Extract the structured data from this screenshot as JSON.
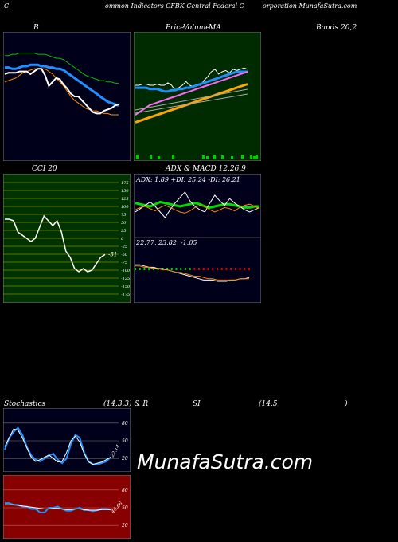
{
  "header": {
    "c1": "C",
    "c2": "ommon  Indicators CFBK Central Federal C",
    "c3": "orporation  MunafaSutra.com"
  },
  "row1": {
    "b": "B",
    "price": "Price,",
    "volume": "Volume",
    "ma": "MA",
    "bands": "Bands 20,2"
  },
  "row2": {
    "cci": "CCI 20",
    "adx_title": "ADX  & MACD 12,26,9"
  },
  "row3": {
    "stoch": "Stochastics",
    "params": "(14,3,3) & R",
    "si": "SI",
    "rsi_param": "(14,5",
    "close": ")"
  },
  "watermark": "MunafaSutra.com",
  "colors": {
    "green_panel": "#002b00",
    "cci_panel": "#003300",
    "red_panel": "#880000",
    "navy": "#00001a"
  },
  "chart_data": [
    {
      "type": "line",
      "name": "bollinger",
      "series": [
        {
          "name": "upper",
          "color": "#00c000",
          "values": [
            72,
            72,
            71,
            71,
            70,
            70,
            70,
            70,
            70,
            71,
            71,
            71,
            72,
            73,
            74,
            74,
            75,
            77,
            79,
            81,
            83,
            85,
            87,
            88,
            89,
            90,
            91,
            91,
            92,
            92,
            93,
            93
          ]
        },
        {
          "name": "middle",
          "color": "#1e90ff",
          "values": [
            81,
            81,
            82,
            82,
            81,
            80,
            80,
            79,
            79,
            79,
            80,
            80,
            81,
            81,
            82,
            82,
            83,
            85,
            87,
            89,
            91,
            93,
            95,
            97,
            99,
            101,
            103,
            105,
            107,
            108,
            109,
            110
          ]
        },
        {
          "name": "lower",
          "color": "#ff8c00",
          "values": [
            92,
            91,
            90,
            89,
            87,
            85,
            84,
            83,
            82,
            82,
            82,
            82,
            84,
            86,
            89,
            92,
            95,
            99,
            103,
            106,
            108,
            110,
            112,
            113,
            114,
            114,
            115,
            116,
            116,
            117,
            117,
            117
          ]
        },
        {
          "name": "price",
          "color": "#ffffff",
          "values": [
            86,
            85,
            85,
            85,
            84,
            84,
            84,
            86,
            84,
            82,
            82,
            87,
            95,
            92,
            89,
            90,
            94,
            97,
            101,
            103,
            103,
            106,
            109,
            112,
            115,
            116,
            116,
            114,
            113,
            112,
            110,
            109
          ]
        }
      ]
    },
    {
      "type": "line",
      "name": "price_ma",
      "series": [
        {
          "name": "price",
          "color": "#ffffff",
          "values": [
            60,
            60,
            61,
            61,
            60,
            60,
            61,
            60,
            60,
            62,
            60,
            56,
            58,
            60,
            63,
            60,
            59,
            61,
            60,
            64,
            67,
            71,
            73,
            69,
            71,
            72,
            70,
            73,
            72,
            73,
            74,
            73
          ]
        },
        {
          "name": "ma_short",
          "color": "#1e90ff",
          "values": [
            58,
            58,
            58,
            58,
            57,
            57,
            57,
            56,
            55,
            55,
            56,
            56,
            57,
            57,
            58,
            58,
            59,
            60,
            61,
            62,
            63,
            64,
            65,
            66,
            67,
            68,
            69,
            70,
            71,
            71,
            71,
            71
          ]
        },
        {
          "name": "ma_mid",
          "color": "#ff66ff",
          "values": [
            36,
            38,
            40,
            42,
            44,
            45,
            46,
            47,
            48,
            49,
            50,
            51,
            52,
            53,
            54,
            55,
            56,
            57,
            58,
            59,
            60,
            61,
            62,
            63,
            64,
            65,
            66,
            67,
            68,
            69,
            70,
            71
          ]
        },
        {
          "name": "ma_long",
          "color": "#ffa500",
          "values": [
            30,
            31,
            32,
            33,
            34,
            35,
            36,
            37,
            38,
            39,
            40,
            41,
            42,
            43,
            44,
            45,
            46,
            47,
            48,
            49,
            50,
            51,
            52,
            53,
            54,
            55,
            56,
            57,
            58,
            59,
            60,
            61
          ]
        }
      ]
    },
    {
      "type": "line",
      "name": "cci",
      "ticks": [
        "175",
        "150",
        "125",
        "100",
        "75",
        "50",
        "25",
        "0",
        "-25",
        "-50",
        "-75",
        "-100",
        "-125",
        "-150",
        "-175"
      ],
      "last_label": "-51",
      "values": [
        60,
        60,
        55,
        20,
        10,
        0,
        -10,
        0,
        35,
        70,
        55,
        40,
        55,
        20,
        -40,
        -60,
        -95,
        -105,
        -95,
        -105,
        -100,
        -80,
        -60,
        -51
      ]
    },
    {
      "type": "line",
      "name": "adx",
      "label": "ADX: 1.89  +DI: 25.24  -DI: 26.21",
      "series": [
        {
          "name": "adx_green",
          "color": "#00dd00",
          "values": [
            28,
            27,
            26,
            25,
            27,
            29,
            28,
            27,
            26,
            25,
            26,
            27,
            28,
            27,
            25,
            24,
            25,
            26,
            27,
            27,
            26,
            25,
            24,
            24,
            25,
            25
          ]
        },
        {
          "name": "di_white",
          "color": "#ffffff",
          "values": [
            20,
            23,
            26,
            29,
            25,
            20,
            15,
            22,
            28,
            33,
            38,
            30,
            25,
            22,
            20,
            28,
            35,
            30,
            26,
            32,
            28,
            25,
            22,
            20,
            22,
            24
          ]
        },
        {
          "name": "di_orange",
          "color": "#ff8800",
          "values": [
            22,
            24,
            25,
            23,
            21,
            24,
            26,
            24,
            22,
            20,
            19,
            21,
            24,
            26,
            25,
            22,
            20,
            22,
            24,
            23,
            21,
            24,
            26,
            27,
            25,
            23
          ]
        }
      ]
    },
    {
      "type": "line",
      "name": "macd",
      "label": "22.77,  23.82,  -1.05",
      "series": [
        {
          "name": "macd",
          "color": "#ffffff",
          "values": [
            30,
            30,
            29,
            28,
            28,
            27,
            27,
            26,
            25,
            24,
            23,
            22,
            21,
            20,
            19,
            18,
            18,
            18,
            17,
            17,
            17,
            18,
            18,
            19,
            19,
            20
          ]
        },
        {
          "name": "signal",
          "color": "#ff8800",
          "values": [
            29,
            29,
            28,
            28,
            27,
            27,
            26,
            26,
            25,
            24,
            24,
            23,
            22,
            21,
            21,
            20,
            19,
            19,
            18,
            18,
            18,
            18,
            18,
            19,
            19,
            19
          ]
        }
      ]
    },
    {
      "type": "line",
      "name": "stochastics",
      "ticks": [
        "80",
        "50",
        "20"
      ],
      "last_label": "22.14",
      "series": [
        {
          "name": "k",
          "color": "#1e90ff",
          "values": [
            35,
            55,
            65,
            72,
            60,
            40,
            25,
            18,
            15,
            20,
            25,
            28,
            18,
            12,
            20,
            45,
            60,
            55,
            30,
            15,
            10,
            10,
            12,
            15,
            22
          ]
        },
        {
          "name": "d",
          "color": "#ffffff",
          "values": [
            40,
            55,
            70,
            68,
            55,
            38,
            22,
            15,
            18,
            22,
            26,
            20,
            14,
            15,
            30,
            50,
            58,
            48,
            28,
            14,
            10,
            12,
            14,
            18,
            22
          ]
        }
      ]
    },
    {
      "type": "line",
      "name": "rsi",
      "ticks": [
        "80",
        "50",
        "20"
      ],
      "last_label": "46.66",
      "series": [
        {
          "name": "rsi",
          "color": "#1e90ff",
          "values": [
            58,
            58,
            55,
            55,
            52,
            52,
            48,
            48,
            42,
            42,
            50,
            50,
            52,
            48,
            45,
            45,
            48,
            50,
            46,
            46,
            44,
            46,
            48,
            48,
            47
          ]
        },
        {
          "name": "rsi_thin",
          "color": "#ffffff",
          "values": [
            55,
            55,
            55,
            54,
            53,
            52,
            51,
            50,
            49,
            48,
            48,
            49,
            49,
            48,
            47,
            47,
            48,
            48,
            47,
            46,
            46,
            46,
            47,
            47,
            47
          ]
        }
      ]
    }
  ]
}
